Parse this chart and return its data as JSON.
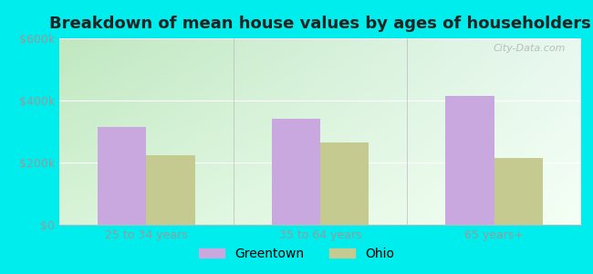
{
  "title": "Breakdown of mean house values by ages of householders",
  "categories": [
    "25 to 34 years",
    "35 to 64 years",
    "65 years+"
  ],
  "greentown_values": [
    315000,
    340000,
    415000
  ],
  "ohio_values": [
    225000,
    265000,
    215000
  ],
  "ylim": [
    0,
    600000
  ],
  "yticks": [
    0,
    200000,
    400000,
    600000
  ],
  "ytick_labels": [
    "$0",
    "$200k",
    "$400k",
    "$600k"
  ],
  "bar_color_greentown": "#c9a8e0",
  "bar_color_ohio": "#c5cb90",
  "legend_labels": [
    "Greentown",
    "Ohio"
  ],
  "background_color": "#00eded",
  "bar_width": 0.28,
  "title_fontsize": 13,
  "tick_fontsize": 9,
  "legend_fontsize": 10,
  "watermark": "City-Data.com",
  "gradient_tl": "#c0e8c0",
  "gradient_tr": "#e8f8f0",
  "gradient_bl": "#d8f4d8",
  "gradient_br": "#f5fff5"
}
